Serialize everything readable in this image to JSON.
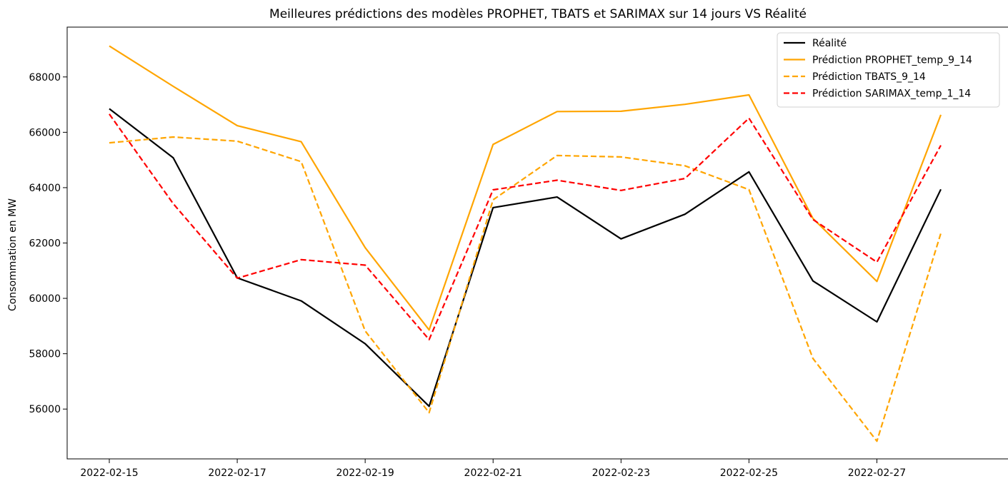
{
  "chart_data": {
    "type": "line",
    "title": "Meilleures prédictions des modèles PROPHET, TBATS et SARIMAX sur 14 jours VS Réalité",
    "xlabel": "",
    "ylabel": "Consommation en MW",
    "x": [
      "2022-02-15",
      "2022-02-16",
      "2022-02-17",
      "2022-02-18",
      "2022-02-19",
      "2022-02-20",
      "2022-02-21",
      "2022-02-22",
      "2022-02-23",
      "2022-02-24",
      "2022-02-25",
      "2022-02-26",
      "2022-02-27",
      "2022-02-28"
    ],
    "x_ticks": [
      "2022-02-15",
      "2022-02-17",
      "2022-02-19",
      "2022-02-21",
      "2022-02-23",
      "2022-02-25",
      "2022-02-27"
    ],
    "y_ticks": [
      "56000",
      "58000",
      "60000",
      "62000",
      "64000",
      "66000",
      "68000"
    ],
    "ylim": [
      54200,
      69800
    ],
    "grid": false,
    "legend_position": "top-right",
    "series": [
      {
        "name": "Réalité",
        "color": "#000000",
        "dashed": false,
        "values": [
          66850,
          65080,
          60740,
          59910,
          58360,
          56100,
          63280,
          63660,
          62150,
          63040,
          64570,
          60630,
          59150,
          63940
        ]
      },
      {
        "name": "Prédiction PROPHET_temp_9_14",
        "color": "#ffa500",
        "dashed": false,
        "values": [
          69120,
          67660,
          66240,
          65660,
          61830,
          58860,
          65560,
          66750,
          66760,
          67010,
          67350,
          62890,
          60610,
          66630
        ]
      },
      {
        "name": "Prédiction TBATS_9_14",
        "color": "#ffa500",
        "dashed": true,
        "values": [
          65620,
          65830,
          65680,
          64940,
          58820,
          55870,
          63560,
          65160,
          65110,
          64790,
          63930,
          57830,
          54840,
          62350
        ]
      },
      {
        "name": "Prédiction SARIMAX_temp_1_14",
        "color": "#ff0000",
        "dashed": true,
        "values": [
          66660,
          63420,
          60730,
          61400,
          61200,
          58510,
          63920,
          64270,
          63900,
          64330,
          66510,
          62850,
          61310,
          65530
        ]
      }
    ]
  }
}
